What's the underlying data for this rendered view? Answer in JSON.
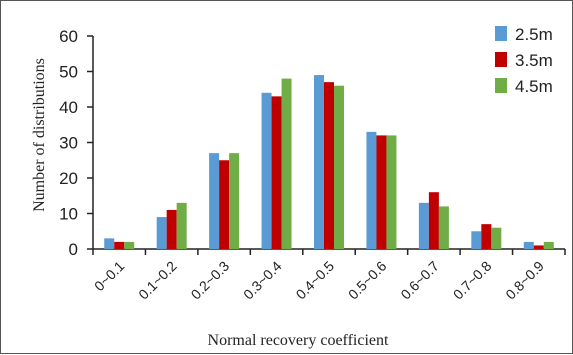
{
  "chart_data": {
    "type": "bar",
    "xlabel": "Normal recovery coefficient",
    "ylabel": "Number of distributions",
    "ylim": [
      0,
      60
    ],
    "yticks": [
      0,
      10,
      20,
      30,
      40,
      50,
      60
    ],
    "grid": false,
    "legend_position": "top-right",
    "categories": [
      "0~0.1",
      "0.1~0.2",
      "0.2~0.3",
      "0.3~0.4",
      "0.4~0.5",
      "0.5~0.6",
      "0.6~0.7",
      "0.7~0.8",
      "0.8~0.9"
    ],
    "series": [
      {
        "name": "2.5m",
        "color": "#5b9bd5",
        "values": [
          3,
          9,
          27,
          44,
          49,
          33,
          13,
          5,
          2
        ]
      },
      {
        "name": "3.5m",
        "color": "#c00000",
        "values": [
          2,
          11,
          25,
          43,
          47,
          32,
          16,
          7,
          1
        ]
      },
      {
        "name": "4.5m",
        "color": "#70ad47",
        "values": [
          2,
          13,
          27,
          48,
          46,
          32,
          12,
          6,
          2
        ]
      }
    ]
  }
}
